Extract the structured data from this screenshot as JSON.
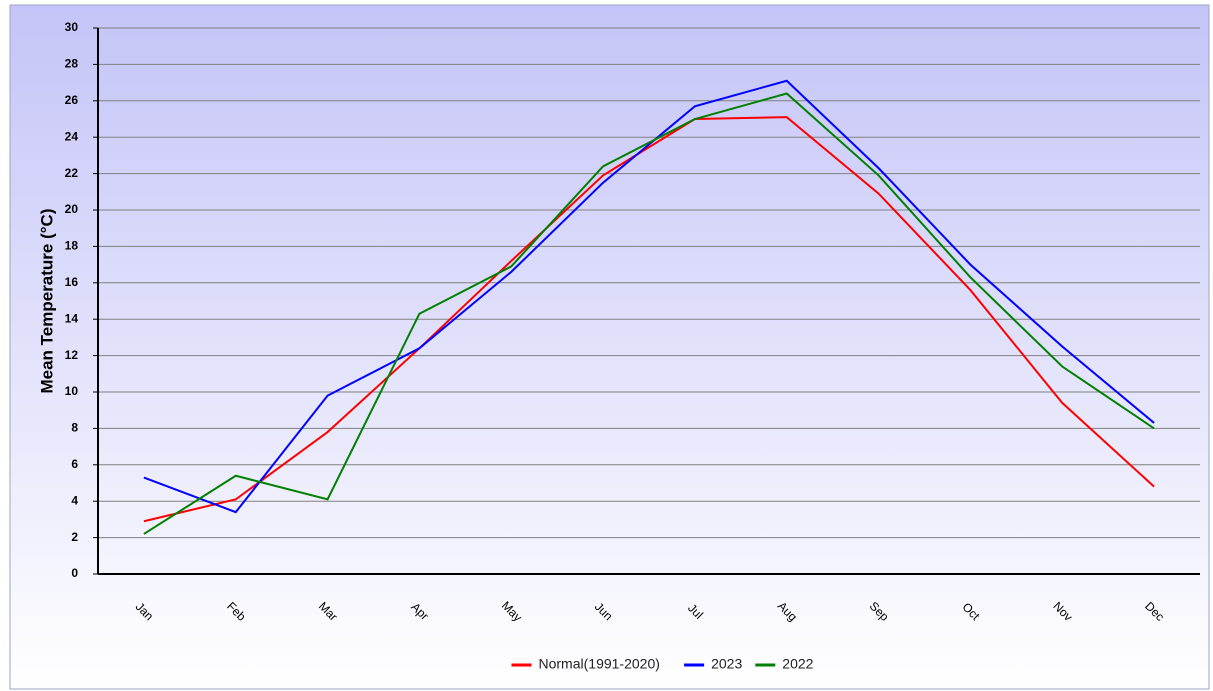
{
  "chart_data": {
    "type": "line",
    "y_label": "Mean Temperature (°C)",
    "categories": [
      "Jan",
      "Feb",
      "Mar",
      "Apr",
      "May",
      "Jun",
      "Jul",
      "Aug",
      "Sep",
      "Oct",
      "Nov",
      "Dec"
    ],
    "series": [
      {
        "name": "Normal(1991-2020)",
        "color": "#ff0000",
        "values": [
          2.9,
          4.1,
          7.8,
          12.4,
          17.2,
          21.9,
          25.0,
          25.1,
          20.9,
          15.6,
          9.4,
          4.8
        ]
      },
      {
        "name": "2023",
        "color": "#0000ff",
        "values": [
          5.3,
          3.4,
          9.8,
          12.4,
          16.6,
          21.5,
          25.7,
          27.1,
          22.3,
          17.0,
          12.5,
          8.3
        ]
      },
      {
        "name": "2022",
        "color": "#008000",
        "values": [
          2.2,
          5.4,
          4.1,
          14.3,
          16.9,
          22.4,
          25.0,
          26.4,
          21.9,
          16.3,
          11.4,
          8.0
        ]
      }
    ],
    "ylim": [
      0,
      30
    ],
    "yticks": [
      0,
      2,
      4,
      6,
      8,
      10,
      12,
      14,
      16,
      18,
      20,
      22,
      24,
      26,
      28,
      30
    ],
    "grid": true,
    "legend": "bottom"
  }
}
